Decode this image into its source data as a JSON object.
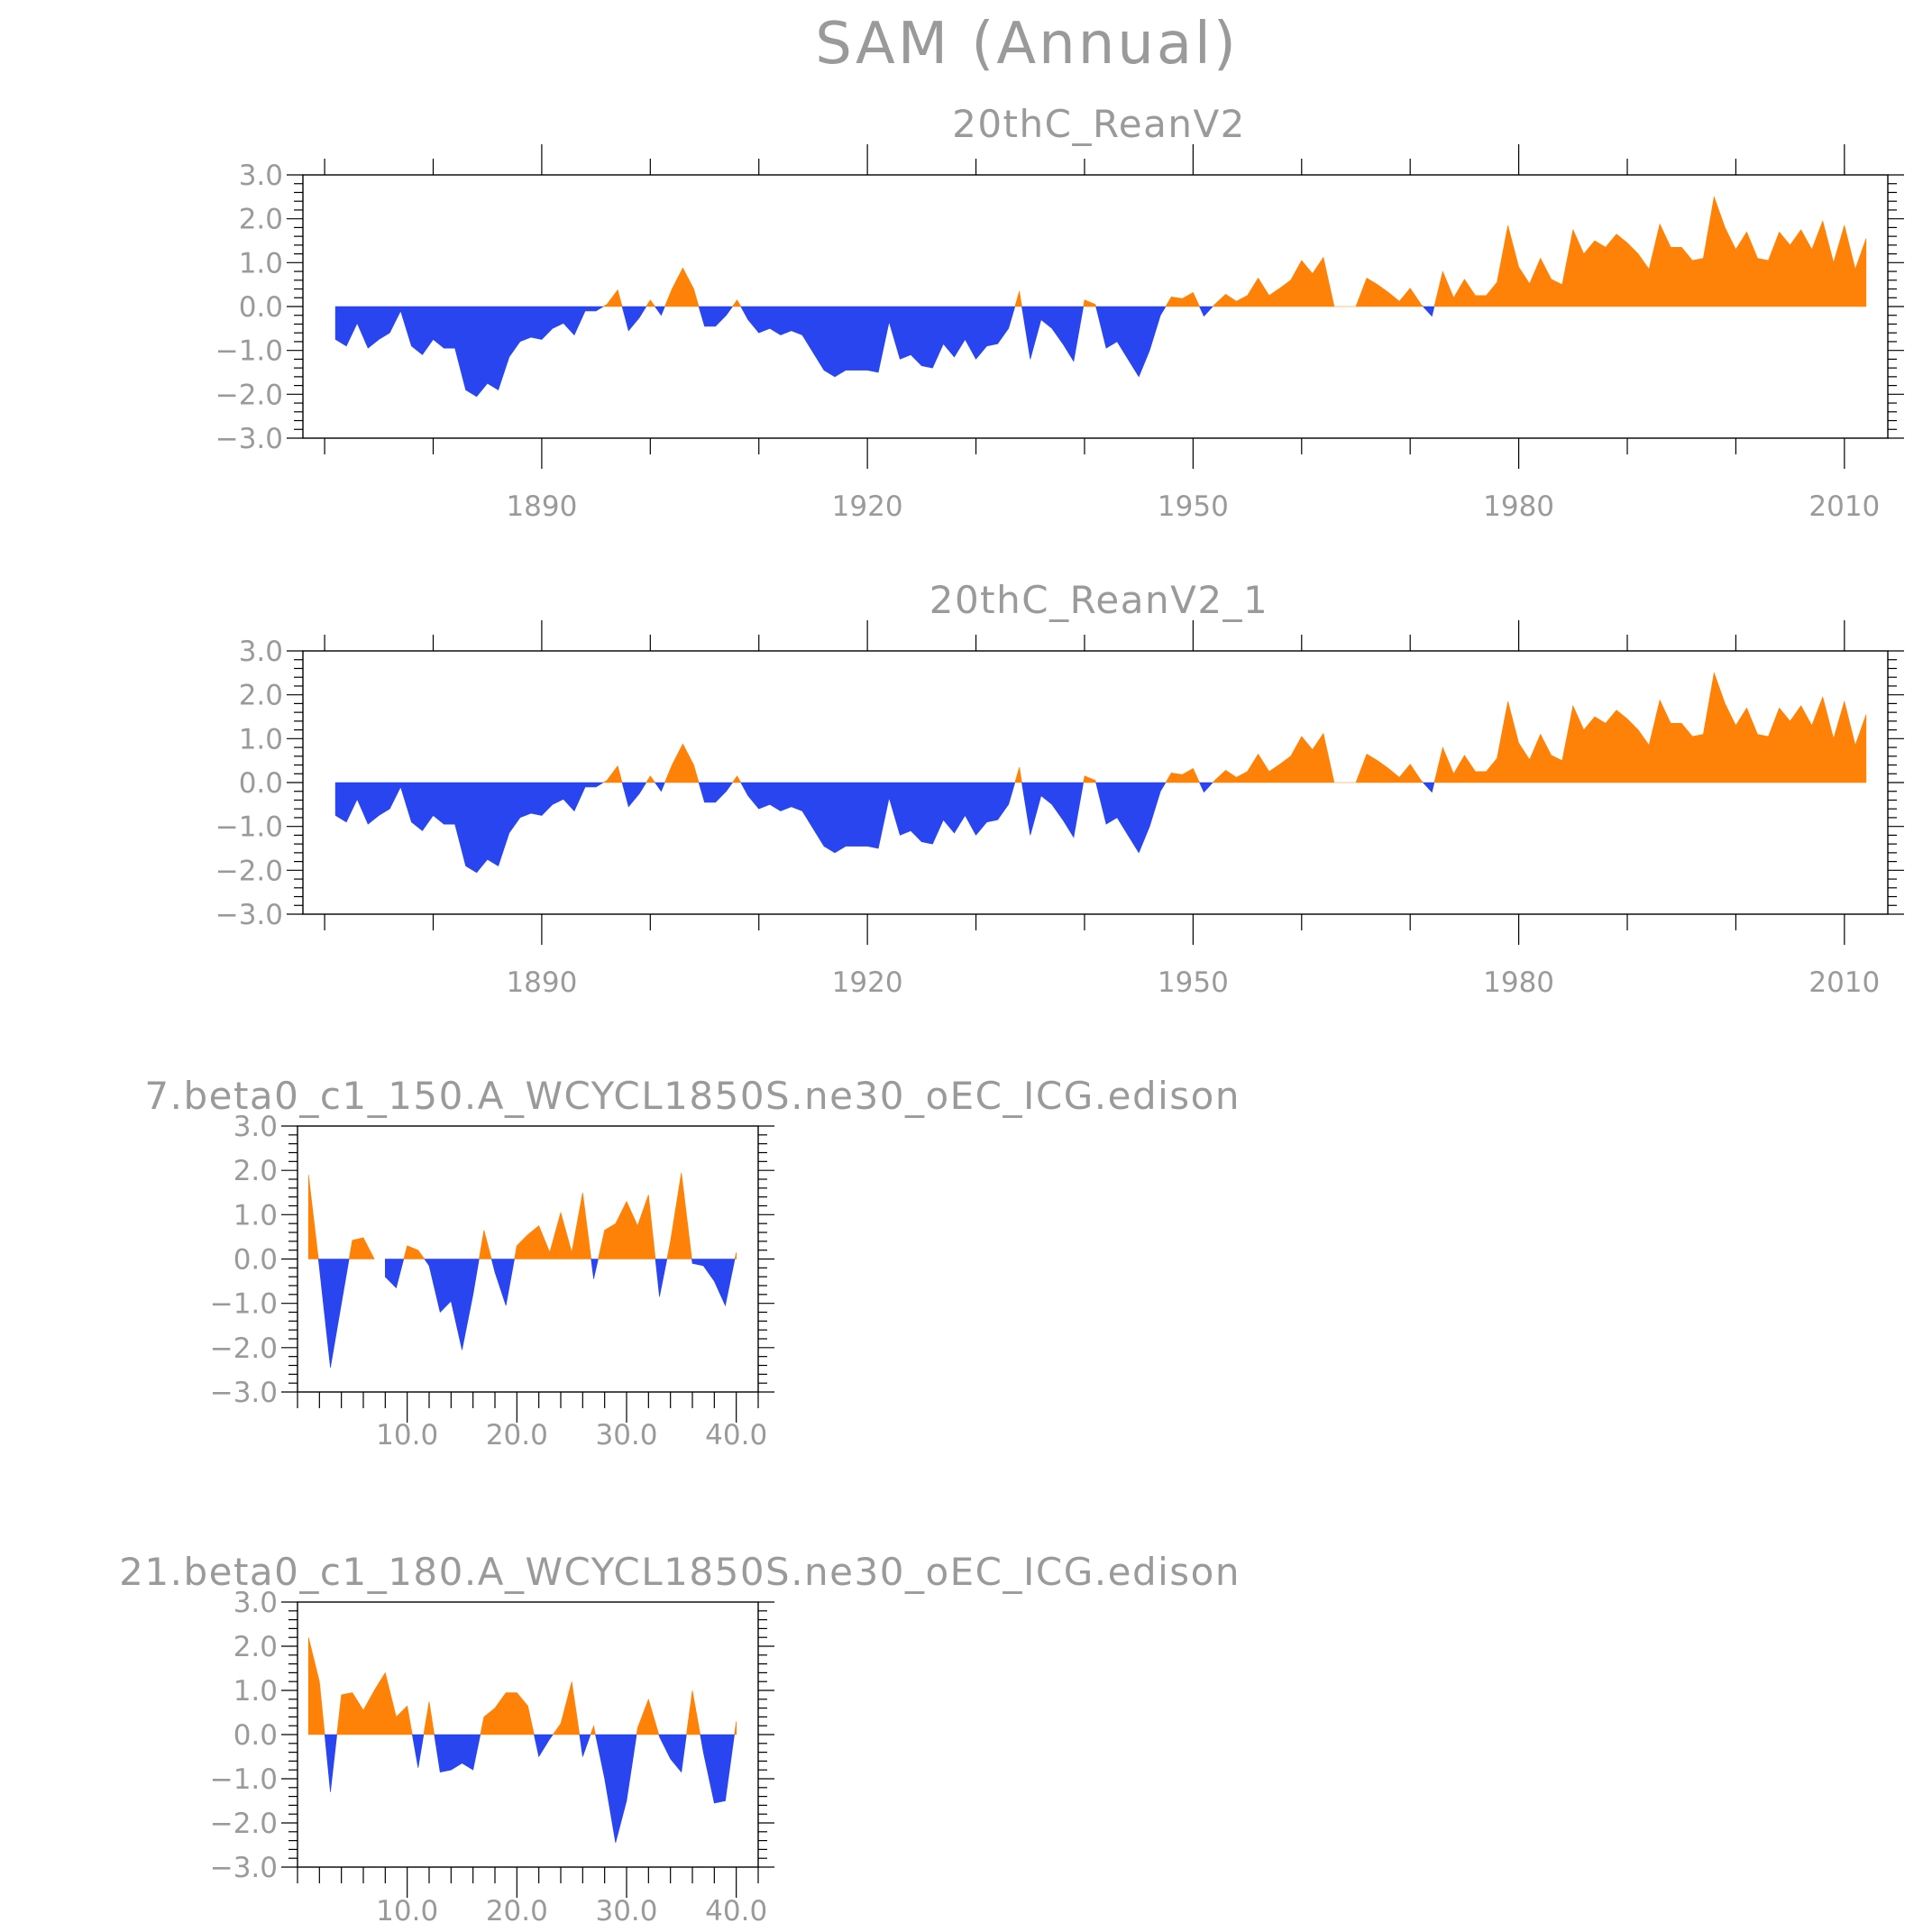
{
  "figure": {
    "title": "SAM (Annual)"
  },
  "colors": {
    "positive": "#ff8208",
    "negative": "#2845ef",
    "text": "#9a9a9a",
    "axis": "#000000"
  },
  "chart_data": [
    {
      "type": "area",
      "title": "20thC_ReanV2",
      "xlabel": "",
      "ylabel": "",
      "xlim": [
        1868,
        2014
      ],
      "ylim": [
        -3.0,
        3.0
      ],
      "x_ticks": [
        1890,
        1920,
        1950,
        1980,
        2010
      ],
      "x_tick_labels": [
        "1890",
        "1920",
        "1950",
        "1980",
        "2010"
      ],
      "y_ticks": [
        -3,
        -2,
        -1,
        0,
        1,
        2,
        3
      ],
      "y_tick_labels": [
        "−3.0",
        "−2.0",
        "−1.0",
        "0.0",
        "1.0",
        "2.0",
        "3.0"
      ],
      "fill_above_zero": "positive",
      "fill_below_zero": "negative",
      "x_start": 1871,
      "x_step": 1,
      "values": [
        -0.75,
        -0.9,
        -0.38,
        -0.95,
        -0.75,
        -0.6,
        -0.1,
        -0.9,
        -1.1,
        -0.75,
        -0.95,
        -0.95,
        -1.9,
        -2.05,
        -1.75,
        -1.9,
        -1.15,
        -0.8,
        -0.7,
        -0.75,
        -0.5,
        -0.38,
        -0.65,
        -0.1,
        -0.1,
        0.05,
        0.38,
        -0.55,
        -0.25,
        0.15,
        -0.2,
        0.4,
        0.88,
        0.4,
        -0.45,
        -0.45,
        -0.2,
        0.15,
        -0.3,
        -0.6,
        -0.5,
        -0.65,
        -0.55,
        -0.65,
        -1.05,
        -1.45,
        -1.6,
        -1.45,
        -1.45,
        -1.45,
        -1.5,
        -0.35,
        -1.2,
        -1.1,
        -1.35,
        -1.4,
        -0.85,
        -1.15,
        -0.75,
        -1.2,
        -0.9,
        -0.85,
        -0.5,
        0.35,
        -1.2,
        -0.3,
        -0.5,
        -0.85,
        -1.25,
        0.15,
        0.05,
        -0.95,
        -0.8,
        -1.2,
        -1.6,
        -1.0,
        -0.2,
        0.22,
        0.18,
        0.32,
        -0.22,
        0.05,
        0.28,
        0.12,
        0.25,
        0.65,
        0.25,
        0.42,
        0.6,
        1.05,
        0.75,
        1.12,
        0.0,
        0.0,
        0.0,
        0.65,
        0.5,
        0.32,
        0.12,
        0.42,
        0.05,
        -0.22,
        0.8,
        0.2,
        0.62,
        0.25,
        0.25,
        0.55,
        1.85,
        0.9,
        0.52,
        1.1,
        0.62,
        0.5,
        1.75,
        1.2,
        1.5,
        1.35,
        1.65,
        1.45,
        1.2,
        0.85,
        1.88,
        1.35,
        1.35,
        1.05,
        1.1,
        2.5,
        1.8,
        1.3,
        1.7,
        1.1,
        1.05,
        1.7,
        1.4,
        1.75,
        1.3,
        1.95,
        1.0,
        1.85,
        0.85,
        1.55
      ]
    },
    {
      "type": "area",
      "title": "20thC_ReanV2_1",
      "xlabel": "",
      "ylabel": "",
      "xlim": [
        1868,
        2014
      ],
      "ylim": [
        -3.0,
        3.0
      ],
      "x_ticks": [
        1890,
        1920,
        1950,
        1980,
        2010
      ],
      "x_tick_labels": [
        "1890",
        "1920",
        "1950",
        "1980",
        "2010"
      ],
      "y_ticks": [
        -3,
        -2,
        -1,
        0,
        1,
        2,
        3
      ],
      "y_tick_labels": [
        "−3.0",
        "−2.0",
        "−1.0",
        "0.0",
        "1.0",
        "2.0",
        "3.0"
      ],
      "fill_above_zero": "positive",
      "fill_below_zero": "negative",
      "x_start": 1871,
      "x_step": 1,
      "values": [
        -0.75,
        -0.9,
        -0.38,
        -0.95,
        -0.75,
        -0.6,
        -0.1,
        -0.9,
        -1.1,
        -0.75,
        -0.95,
        -0.95,
        -1.9,
        -2.05,
        -1.75,
        -1.9,
        -1.15,
        -0.8,
        -0.7,
        -0.75,
        -0.5,
        -0.38,
        -0.65,
        -0.1,
        -0.1,
        0.05,
        0.38,
        -0.55,
        -0.25,
        0.15,
        -0.2,
        0.4,
        0.88,
        0.4,
        -0.45,
        -0.45,
        -0.2,
        0.15,
        -0.3,
        -0.6,
        -0.5,
        -0.65,
        -0.55,
        -0.65,
        -1.05,
        -1.45,
        -1.6,
        -1.45,
        -1.45,
        -1.45,
        -1.5,
        -0.35,
        -1.2,
        -1.1,
        -1.35,
        -1.4,
        -0.85,
        -1.15,
        -0.75,
        -1.2,
        -0.9,
        -0.85,
        -0.5,
        0.35,
        -1.2,
        -0.3,
        -0.5,
        -0.85,
        -1.25,
        0.15,
        0.05,
        -0.95,
        -0.8,
        -1.2,
        -1.6,
        -1.0,
        -0.2,
        0.22,
        0.18,
        0.32,
        -0.22,
        0.05,
        0.28,
        0.12,
        0.25,
        0.65,
        0.25,
        0.42,
        0.6,
        1.05,
        0.75,
        1.12,
        0.0,
        0.0,
        0.0,
        0.65,
        0.5,
        0.32,
        0.12,
        0.42,
        0.05,
        -0.22,
        0.8,
        0.2,
        0.62,
        0.25,
        0.25,
        0.55,
        1.85,
        0.9,
        0.52,
        1.1,
        0.62,
        0.5,
        1.75,
        1.2,
        1.5,
        1.35,
        1.65,
        1.45,
        1.2,
        0.85,
        1.88,
        1.35,
        1.35,
        1.05,
        1.1,
        2.5,
        1.8,
        1.3,
        1.7,
        1.1,
        1.05,
        1.7,
        1.4,
        1.75,
        1.3,
        1.95,
        1.0,
        1.85,
        0.85,
        1.55
      ]
    },
    {
      "type": "area",
      "title": "7.beta0_c1_150.A_WCYCL1850S.ne30_oEC_ICG.edison",
      "xlabel": "",
      "ylabel": "",
      "xlim": [
        0,
        42
      ],
      "ylim": [
        -3.0,
        3.0
      ],
      "x_ticks": [
        10,
        20,
        30,
        40
      ],
      "x_tick_labels": [
        "10.0",
        "20.0",
        "30.0",
        "40.0"
      ],
      "y_ticks": [
        -3,
        -2,
        -1,
        0,
        1,
        2,
        3
      ],
      "y_tick_labels": [
        "−3.0",
        "−2.0",
        "−1.0",
        "0.0",
        "1.0",
        "2.0",
        "3.0"
      ],
      "fill_above_zero": "positive",
      "fill_below_zero": "negative",
      "x_start": 1,
      "x_step": 1,
      "values": [
        1.9,
        -0.2,
        -2.45,
        -1.0,
        0.42,
        0.48,
        0.0,
        -0.4,
        -0.65,
        0.3,
        0.2,
        -0.15,
        -1.2,
        -0.95,
        -2.05,
        -0.8,
        0.65,
        -0.3,
        -1.05,
        0.3,
        0.55,
        0.75,
        0.15,
        1.05,
        0.15,
        1.5,
        -0.45,
        0.65,
        0.8,
        1.3,
        0.75,
        1.45,
        -0.85,
        0.4,
        1.95,
        -0.1,
        -0.15,
        -0.5,
        -1.05,
        0.15
      ]
    },
    {
      "type": "area",
      "title": "21.beta0_c1_180.A_WCYCL1850S.ne30_oEC_ICG.edison",
      "xlabel": "",
      "ylabel": "",
      "xlim": [
        0,
        42
      ],
      "ylim": [
        -3.0,
        3.0
      ],
      "x_ticks": [
        10,
        20,
        30,
        40
      ],
      "x_tick_labels": [
        "10.0",
        "20.0",
        "30.0",
        "40.0"
      ],
      "y_ticks": [
        -3,
        -2,
        -1,
        0,
        1,
        2,
        3
      ],
      "y_tick_labels": [
        "−3.0",
        "−2.0",
        "−1.0",
        "0.0",
        "1.0",
        "2.0",
        "3.0"
      ],
      "fill_above_zero": "positive",
      "fill_below_zero": "negative",
      "x_start": 1,
      "x_step": 1,
      "values": [
        2.2,
        1.2,
        -1.3,
        0.9,
        0.95,
        0.55,
        1.0,
        1.4,
        0.4,
        0.65,
        -0.75,
        0.75,
        -0.85,
        -0.8,
        -0.65,
        -0.8,
        0.4,
        0.6,
        0.95,
        0.95,
        0.65,
        -0.5,
        -0.1,
        0.25,
        1.2,
        -0.5,
        0.2,
        -1.0,
        -2.45,
        -1.5,
        0.15,
        0.8,
        -0.05,
        -0.55,
        -0.85,
        1.0,
        -0.4,
        -1.55,
        -1.5,
        0.3
      ]
    }
  ]
}
